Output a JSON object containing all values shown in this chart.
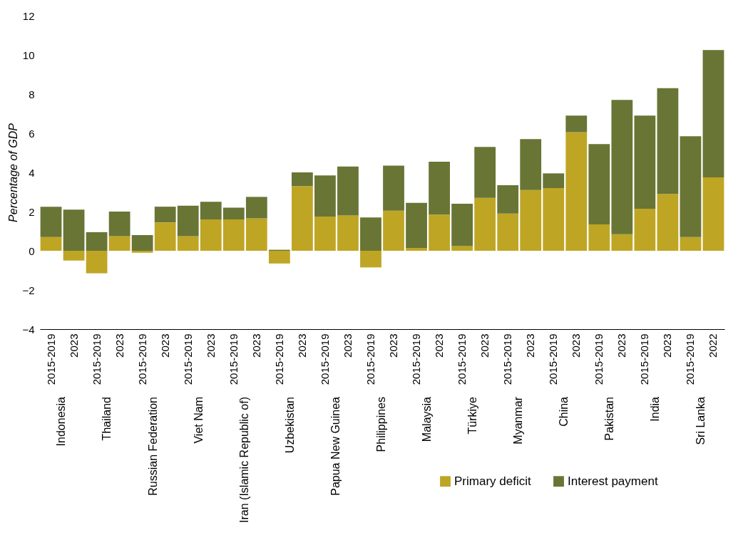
{
  "chart_data": {
    "type": "bar",
    "stacked": true,
    "ylabel": "Percentage of GDP",
    "categories": [
      "2015-2019",
      "2023",
      "2015-2019",
      "2023",
      "2015-2019",
      "2023",
      "2015-2019",
      "2023",
      "2015-2019",
      "2023",
      "2015-2019",
      "2023",
      "2015-2019",
      "2023",
      "2015-2019",
      "2023",
      "2015-2019",
      "2023",
      "2015-2019",
      "2023",
      "2015-2019",
      "2023",
      "2015-2019",
      "2023",
      "2015-2019",
      "2023",
      "2015-2019",
      "2023",
      "2015-2019",
      "2022"
    ],
    "series": [
      {
        "name": "Primary deficit",
        "color": "#bfa524",
        "values": [
          0.7,
          -0.5,
          -1.15,
          0.75,
          -0.1,
          1.45,
          0.75,
          1.6,
          1.6,
          1.65,
          -0.65,
          3.3,
          1.75,
          1.8,
          -0.85,
          2.05,
          0.15,
          1.85,
          0.25,
          2.7,
          1.9,
          3.1,
          3.2,
          6.05,
          1.35,
          0.85,
          2.15,
          2.9,
          0.7,
          3.75
        ]
      },
      {
        "name": "Interest payment",
        "color": "#687535",
        "values": [
          1.55,
          2.1,
          0.95,
          1.25,
          0.8,
          0.8,
          1.55,
          0.9,
          0.6,
          1.1,
          0.05,
          0.7,
          2.1,
          2.5,
          1.7,
          2.3,
          2.3,
          2.7,
          2.15,
          2.6,
          1.45,
          2.6,
          0.75,
          0.85,
          4.1,
          6.85,
          4.75,
          5.4,
          5.15,
          6.5
        ]
      }
    ],
    "annotations": [
      "Indonesia",
      "Thailand",
      "Russian Federation",
      "Viet Nam",
      "Iran (Islamic Republic of)",
      "Uzbekistan",
      "Papua New Guinea",
      "Philippines",
      "Malaysia",
      "Türkiye",
      "Myanmar",
      "China",
      "Pakistan",
      "India",
      "Sri Lanka"
    ],
    "ylim": [
      -4,
      12
    ],
    "yticks": [
      -4,
      -2,
      0,
      2,
      4,
      6,
      8,
      10,
      12
    ],
    "grid": false,
    "legend": "bottom right"
  }
}
